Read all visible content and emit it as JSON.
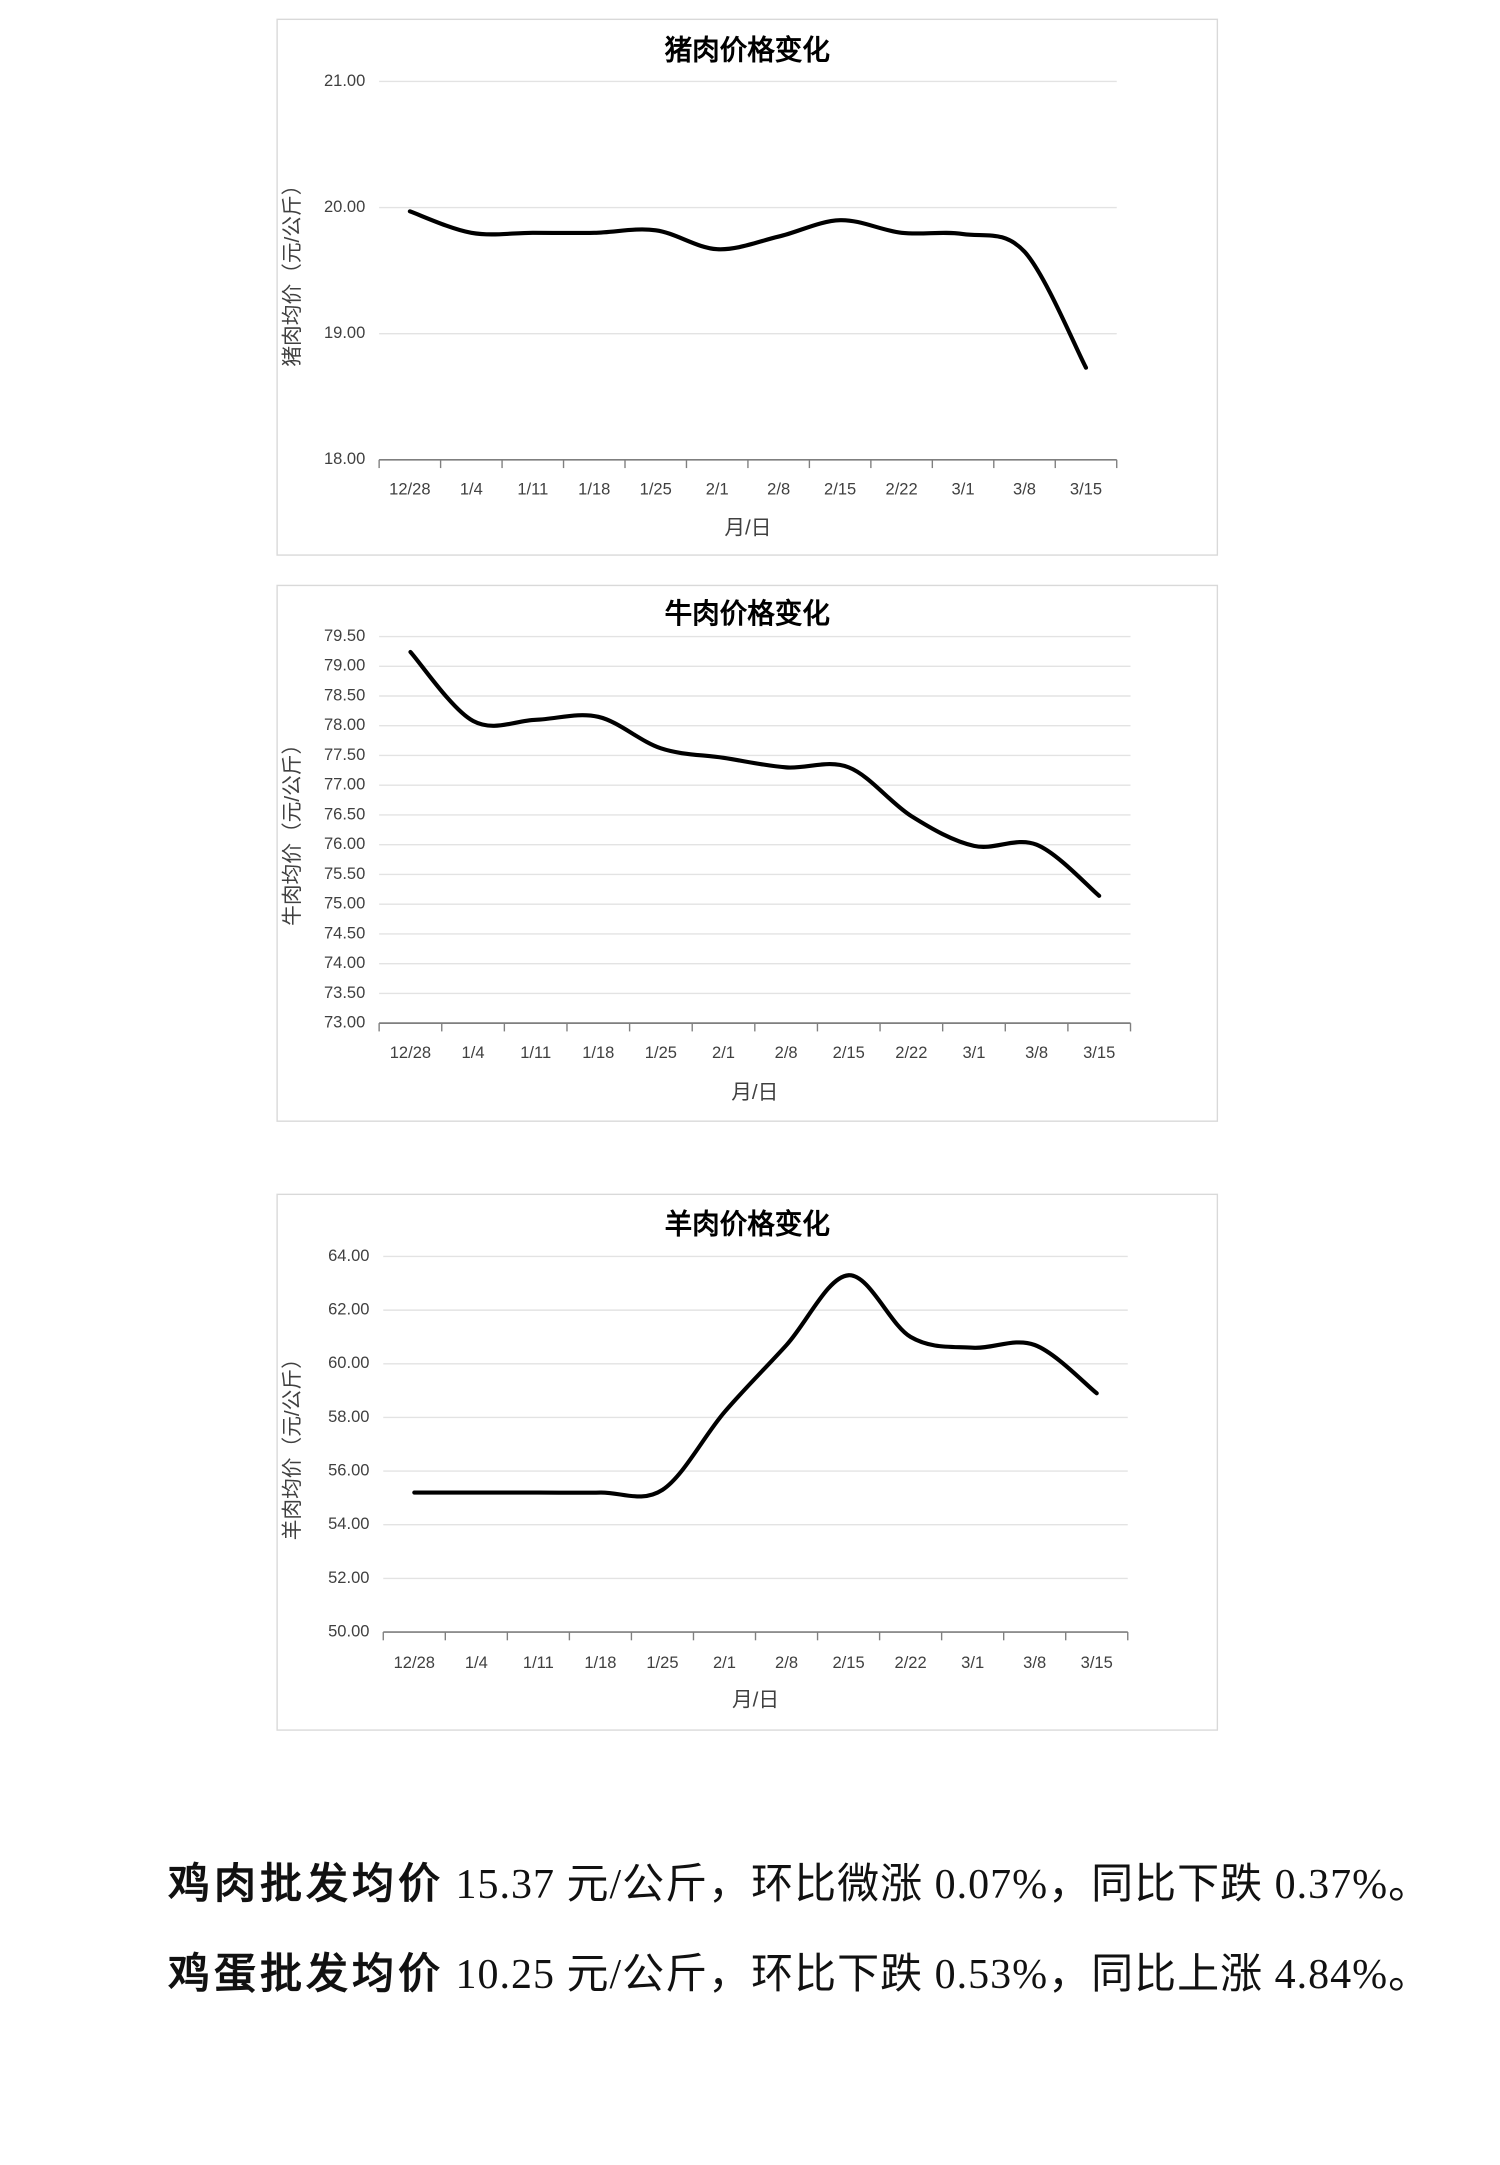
{
  "chart_data": [
    {
      "type": "line",
      "title": "猪肉价格变化",
      "x_label": "月/日",
      "y_label": "猪肉均价（元/公斤）",
      "categories": [
        "12/28",
        "1/4",
        "1/11",
        "1/18",
        "1/25",
        "2/1",
        "2/8",
        "2/15",
        "2/22",
        "3/1",
        "3/8",
        "3/15"
      ],
      "values": [
        19.97,
        19.8,
        19.8,
        19.8,
        19.82,
        19.67,
        19.77,
        19.9,
        19.8,
        19.79,
        19.65,
        18.73
      ],
      "color": "#000000",
      "smooth": true,
      "grid": true,
      "ylim": [
        18,
        21
      ],
      "yticks": [
        {
          "value": 18,
          "label": "18.00"
        },
        {
          "value": 19,
          "label": "19.00"
        },
        {
          "value": 20,
          "label": "20.00"
        },
        {
          "value": 21,
          "label": "21.00"
        }
      ]
    },
    {
      "type": "line",
      "title": "牛肉价格变化",
      "x_label": "月/日",
      "y_label": "牛肉均价（元/公斤）",
      "categories": [
        "12/28",
        "1/4",
        "1/11",
        "1/18",
        "1/25",
        "2/1",
        "2/8",
        "2/15",
        "2/22",
        "3/1",
        "3/8",
        "3/15"
      ],
      "values": [
        79.24,
        78.08,
        78.1,
        78.15,
        77.62,
        77.46,
        77.3,
        77.3,
        76.48,
        75.98,
        76.0,
        75.14
      ],
      "color": "#000000",
      "smooth": true,
      "grid": true,
      "ylim": [
        73,
        79.5
      ],
      "yticks": [
        {
          "value": 73,
          "label": "73.00"
        },
        {
          "value": 73.5,
          "label": "73.50"
        },
        {
          "value": 74,
          "label": "74.00"
        },
        {
          "value": 74.5,
          "label": "74.50"
        },
        {
          "value": 75,
          "label": "75.00"
        },
        {
          "value": 75.5,
          "label": "75.50"
        },
        {
          "value": 76,
          "label": "76.00"
        },
        {
          "value": 76.5,
          "label": "76.50"
        },
        {
          "value": 77,
          "label": "77.00"
        },
        {
          "value": 77.5,
          "label": "77.50"
        },
        {
          "value": 78,
          "label": "78.00"
        },
        {
          "value": 78.5,
          "label": "78.50"
        },
        {
          "value": 79,
          "label": "79.00"
        },
        {
          "value": 79.5,
          "label": "79.50"
        }
      ]
    },
    {
      "type": "line",
      "title": "羊肉价格变化",
      "x_label": "月/日",
      "y_label": "羊肉均价（元/公斤）",
      "categories": [
        "12/28",
        "1/4",
        "1/11",
        "1/18",
        "1/25",
        "2/1",
        "2/8",
        "2/15",
        "2/22",
        "3/1",
        "3/8",
        "3/15"
      ],
      "values": [
        55.2,
        55.2,
        55.2,
        55.2,
        55.3,
        58.2,
        60.7,
        63.3,
        61.0,
        60.6,
        60.7,
        58.9
      ],
      "color": "#000000",
      "smooth": true,
      "grid": true,
      "ylim": [
        50,
        64
      ],
      "yticks": [
        {
          "value": 50,
          "label": "50.00"
        },
        {
          "value": 52,
          "label": "52.00"
        },
        {
          "value": 54,
          "label": "54.00"
        },
        {
          "value": 56,
          "label": "56.00"
        },
        {
          "value": 58,
          "label": "58.00"
        },
        {
          "value": 60,
          "label": "60.00"
        },
        {
          "value": 62,
          "label": "62.00"
        },
        {
          "value": 64,
          "label": "64.00"
        }
      ]
    }
  ],
  "paragraphs": [
    {
      "label": "鸡肉批发均价",
      "text": "15.37 元/公斤，环比微涨 0.07%，同比下跌 0.37%。"
    },
    {
      "label": "鸡蛋批发均价",
      "text": "10.25 元/公斤，环比下跌 0.53%，同比上涨 4.84%。"
    }
  ]
}
